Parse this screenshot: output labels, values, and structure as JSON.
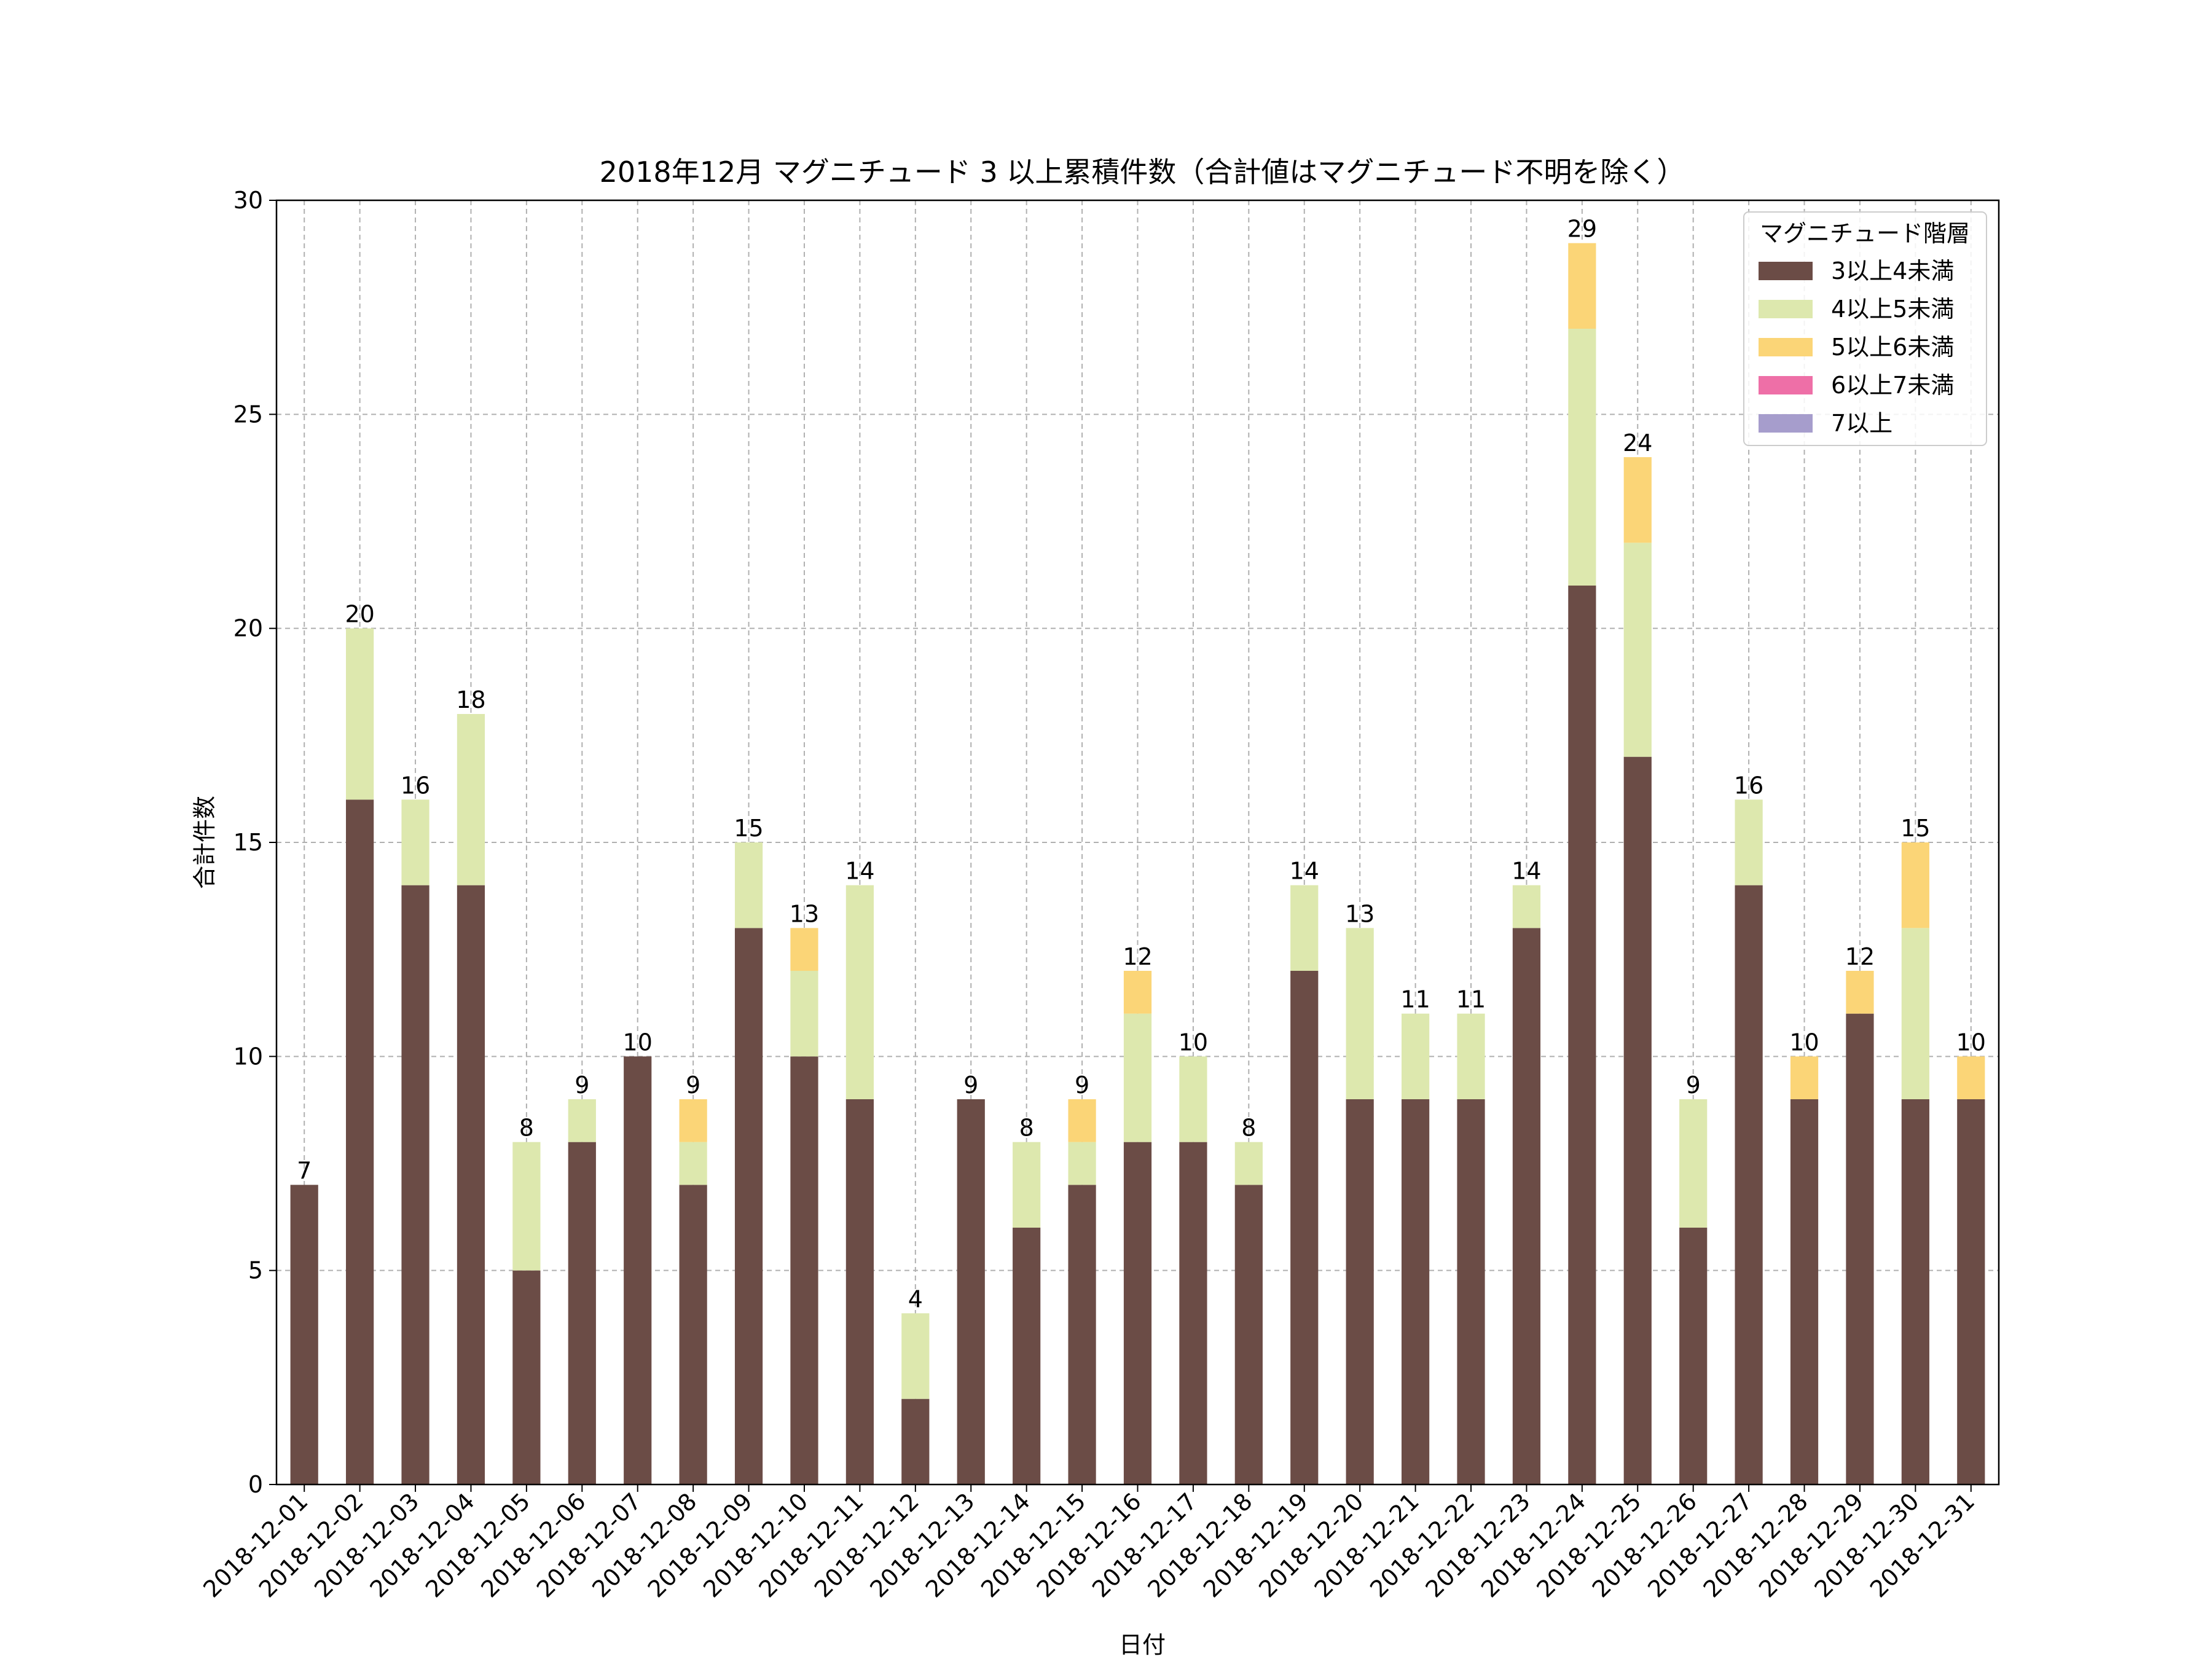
{
  "chart_data": {
    "type": "bar",
    "stacked": true,
    "title": "2018年12月 マグニチュード 3 以上累積件数（合計値はマグニチュード不明を除く）",
    "xlabel": "日付",
    "ylabel": "合計件数",
    "ylim": [
      0,
      30
    ],
    "yticks": [
      "0",
      "5",
      "10",
      "15",
      "20",
      "25",
      "30"
    ],
    "grid": true,
    "legend": {
      "title": "マグニチュード階層",
      "placement": "top-right"
    },
    "categories": [
      "2018-12-01",
      "2018-12-02",
      "2018-12-03",
      "2018-12-04",
      "2018-12-05",
      "2018-12-06",
      "2018-12-07",
      "2018-12-08",
      "2018-12-09",
      "2018-12-10",
      "2018-12-11",
      "2018-12-12",
      "2018-12-13",
      "2018-12-14",
      "2018-12-15",
      "2018-12-16",
      "2018-12-17",
      "2018-12-18",
      "2018-12-19",
      "2018-12-20",
      "2018-12-21",
      "2018-12-22",
      "2018-12-23",
      "2018-12-24",
      "2018-12-25",
      "2018-12-26",
      "2018-12-27",
      "2018-12-28",
      "2018-12-29",
      "2018-12-30",
      "2018-12-31"
    ],
    "series": [
      {
        "name": "3以上4未満",
        "color": "#6b4c46",
        "values": [
          7,
          16,
          14,
          14,
          5,
          8,
          10,
          7,
          13,
          10,
          9,
          2,
          9,
          6,
          7,
          8,
          8,
          7,
          12,
          9,
          9,
          9,
          13,
          21,
          17,
          6,
          14,
          9,
          11,
          9,
          9
        ]
      },
      {
        "name": "4以上5未満",
        "color": "#dde8ae",
        "values": [
          0,
          4,
          2,
          4,
          3,
          1,
          0,
          1,
          2,
          2,
          5,
          2,
          0,
          2,
          1,
          3,
          2,
          1,
          2,
          4,
          2,
          2,
          1,
          6,
          5,
          3,
          2,
          0,
          0,
          4,
          0
        ]
      },
      {
        "name": "5以上6未満",
        "color": "#fbd577",
        "values": [
          0,
          0,
          0,
          0,
          0,
          0,
          0,
          1,
          0,
          1,
          0,
          0,
          0,
          0,
          1,
          1,
          0,
          0,
          0,
          0,
          0,
          0,
          0,
          2,
          2,
          0,
          0,
          1,
          1,
          2,
          1
        ]
      },
      {
        "name": "6以上7未満",
        "color": "#ee6fa7",
        "values": [
          0,
          0,
          0,
          0,
          0,
          0,
          0,
          0,
          0,
          0,
          0,
          0,
          0,
          0,
          0,
          0,
          0,
          0,
          0,
          0,
          0,
          0,
          0,
          0,
          0,
          0,
          0,
          0,
          0,
          0,
          0
        ]
      },
      {
        "name": "7以上",
        "color": "#a69dcc",
        "values": [
          0,
          0,
          0,
          0,
          0,
          0,
          0,
          0,
          0,
          0,
          0,
          0,
          0,
          0,
          0,
          0,
          0,
          0,
          0,
          0,
          0,
          0,
          0,
          0,
          0,
          0,
          0,
          0,
          0,
          0,
          0
        ]
      }
    ],
    "totals": [
      "7",
      "20",
      "16",
      "18",
      "8",
      "9",
      "10",
      "9",
      "15",
      "13",
      "14",
      "4",
      "9",
      "8",
      "9",
      "12",
      "10",
      "8",
      "14",
      "13",
      "11",
      "11",
      "14",
      "29",
      "24",
      "9",
      "16",
      "10",
      "12",
      "15",
      "10"
    ]
  }
}
